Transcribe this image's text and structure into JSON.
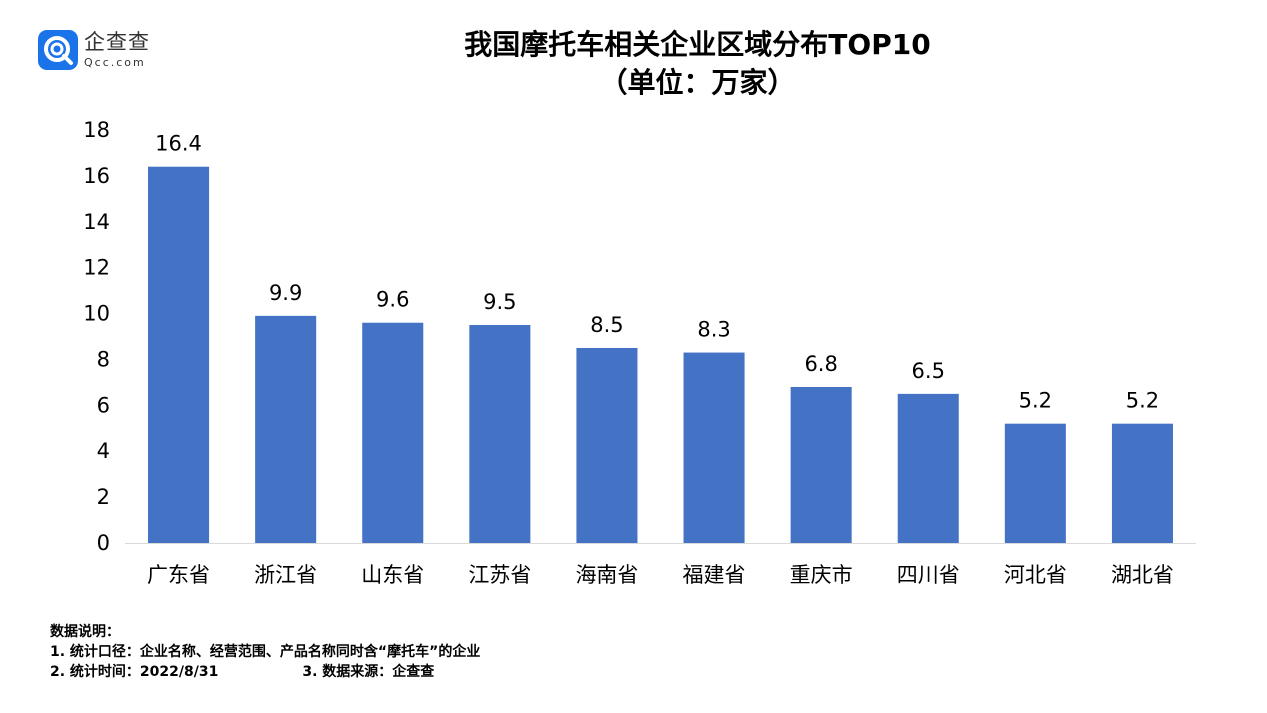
{
  "logo": {
    "cn": "企查查",
    "en": "Qcc.com"
  },
  "chart_data": {
    "type": "bar",
    "title": "我国摩托车相关企业区域分布TOP10",
    "subtitle": "（单位：万家）",
    "categories": [
      "广东省",
      "浙江省",
      "山东省",
      "江苏省",
      "海南省",
      "福建省",
      "重庆市",
      "四川省",
      "河北省",
      "湖北省"
    ],
    "values": [
      16.4,
      9.9,
      9.6,
      9.5,
      8.5,
      8.3,
      6.8,
      6.5,
      5.2,
      5.2
    ],
    "data_labels": [
      "16.4",
      "9.9",
      "9.6",
      "9.5",
      "8.5",
      "8.3",
      "6.8",
      "6.5",
      "5.2",
      "5.2"
    ],
    "ylim": [
      0,
      18
    ],
    "yticks": [
      0,
      2,
      4,
      6,
      8,
      10,
      12,
      14,
      16,
      18
    ],
    "xlabel": "",
    "ylabel": "",
    "grid": false,
    "bar_color": "#4472C4"
  },
  "notes": {
    "heading": "数据说明：",
    "line1": "1. 统计口径：企业名称、经营范围、产品名称同时含“摩托车”的企业",
    "line2a": "2. 统计时间：2022/8/31",
    "line2b": "3. 数据来源：企查查"
  }
}
